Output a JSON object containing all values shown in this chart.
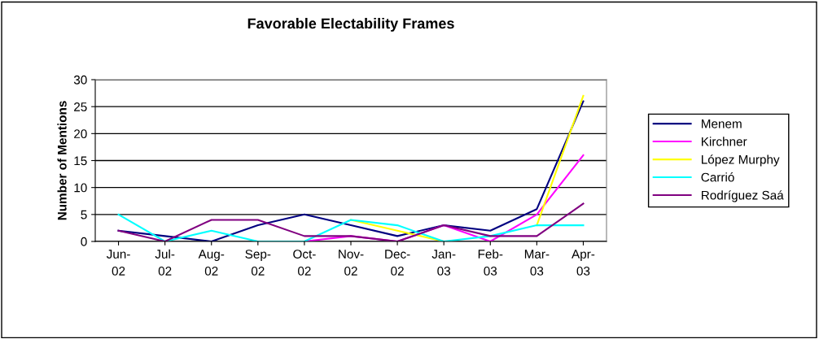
{
  "chart_data": {
    "type": "line",
    "title": "Favorable Electability Frames",
    "ylabel": "Number of Mentions",
    "categories": [
      "Jun-\n02",
      "Jul-\n02",
      "Aug-\n02",
      "Sep-\n02",
      "Oct-\n02",
      "Nov-\n02",
      "Dec-\n02",
      "Jan-\n03",
      "Feb-\n03",
      "Mar-\n03",
      "Apr-\n03"
    ],
    "series": [
      {
        "name": "Menem",
        "color": "#000080",
        "values": [
          2,
          1,
          0,
          3,
          5,
          3,
          1,
          3,
          2,
          6,
          26
        ]
      },
      {
        "name": "Kirchner",
        "color": "#ff00ff",
        "values": [
          null,
          null,
          null,
          0,
          0,
          1,
          0,
          3,
          0,
          5,
          16
        ]
      },
      {
        "name": "López Murphy",
        "color": "#ffff00",
        "values": [
          null,
          null,
          null,
          null,
          null,
          4,
          2,
          0,
          null,
          3,
          27
        ]
      },
      {
        "name": "Carrió",
        "color": "#00ffff",
        "values": [
          5,
          0,
          2,
          0,
          0,
          4,
          3,
          0,
          1,
          3,
          3
        ]
      },
      {
        "name": "Rodríguez Saá",
        "color": "#800080",
        "values": [
          2,
          0,
          4,
          4,
          1,
          1,
          0,
          3,
          1,
          1,
          7
        ]
      }
    ],
    "ylim": [
      0,
      30
    ],
    "yticks": [
      0,
      5,
      10,
      15,
      20,
      25,
      30
    ],
    "grid": "y",
    "legend": "right",
    "marker": "none"
  }
}
